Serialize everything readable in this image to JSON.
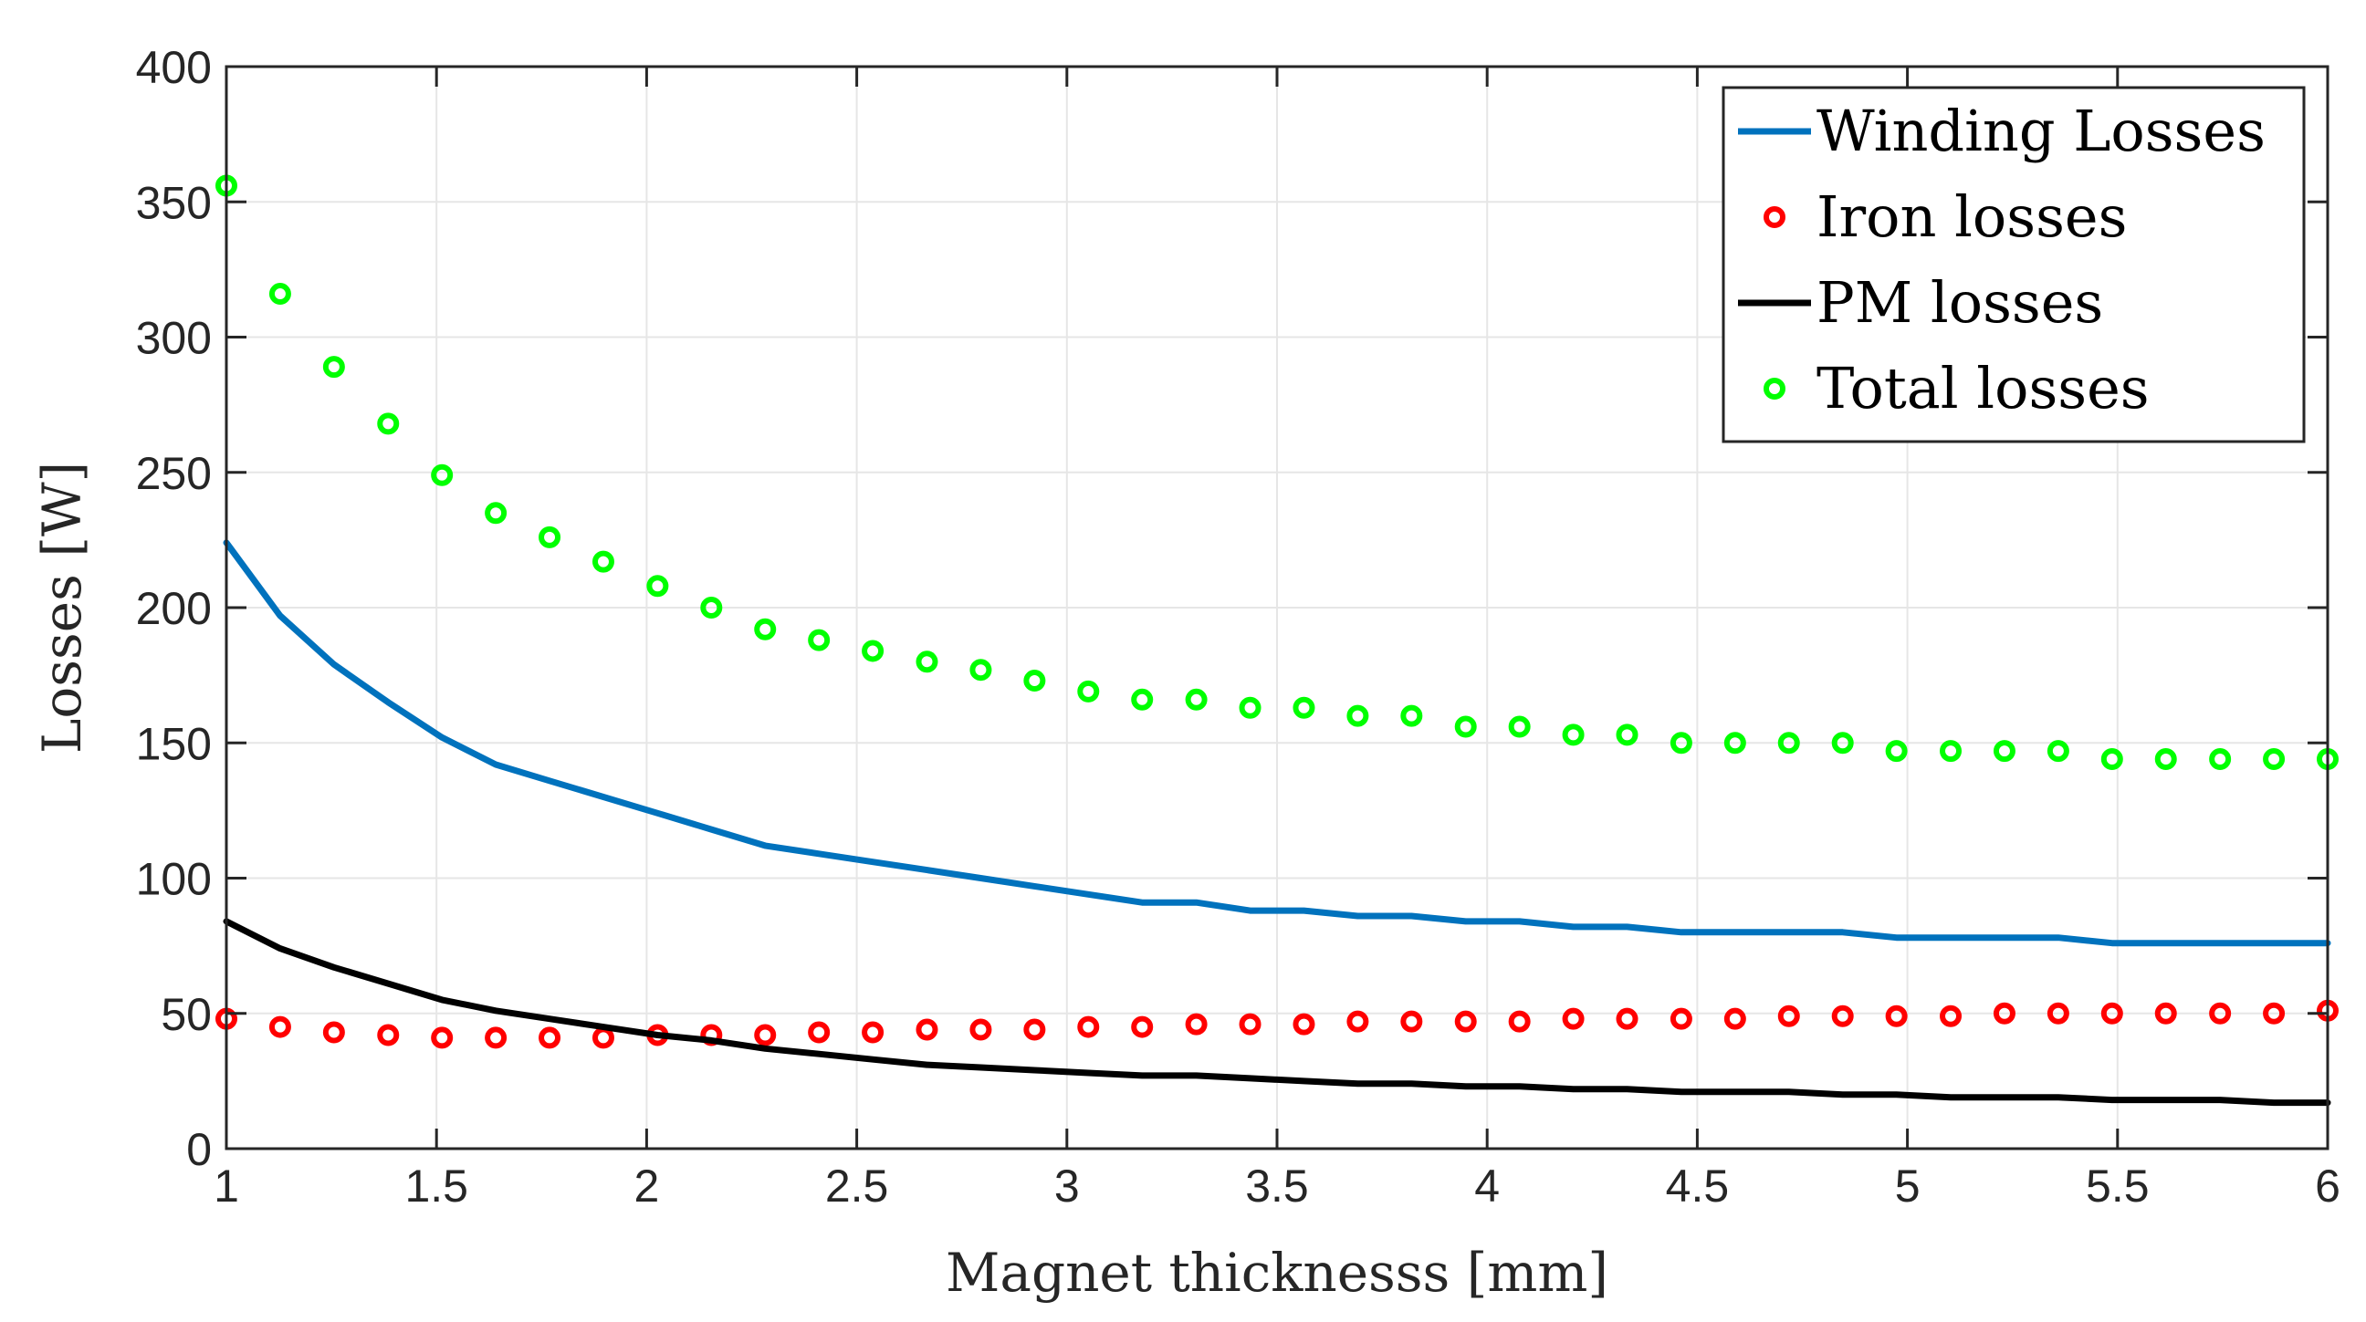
{
  "chart_data": {
    "type": "line",
    "title": "",
    "xlabel": "Magnet thicknesss [mm]",
    "ylabel": "Losses [W]",
    "xlim": [
      1,
      6
    ],
    "ylim": [
      0,
      400
    ],
    "grid": true,
    "legend_position": "top-right",
    "x_ticks": [
      "1",
      "1.5",
      "2",
      "2.5",
      "3",
      "3.5",
      "4",
      "4.5",
      "5",
      "5.5",
      "6"
    ],
    "y_ticks": [
      "0",
      "50",
      "100",
      "150",
      "200",
      "250",
      "300",
      "350",
      "400"
    ],
    "x": [
      1.0,
      1.128,
      1.256,
      1.385,
      1.513,
      1.641,
      1.769,
      1.897,
      2.026,
      2.154,
      2.282,
      2.41,
      2.538,
      2.667,
      2.795,
      2.923,
      3.051,
      3.179,
      3.308,
      3.436,
      3.564,
      3.692,
      3.82,
      3.949,
      4.077,
      4.205,
      4.333,
      4.462,
      4.59,
      4.718,
      4.846,
      4.974,
      5.103,
      5.231,
      5.359,
      5.487,
      5.615,
      5.744,
      5.872,
      6.0
    ],
    "series": [
      {
        "name": "Winding Losses",
        "style": "line",
        "color": "#0072BD",
        "values": [
          224,
          197,
          179,
          165,
          152,
          142,
          136,
          130,
          124,
          118,
          112,
          109,
          106,
          103,
          100,
          97,
          94,
          91,
          91,
          88,
          88,
          86,
          86,
          84,
          84,
          82,
          82,
          80,
          80,
          80,
          80,
          78,
          78,
          78,
          78,
          76,
          76,
          76,
          76,
          76
        ]
      },
      {
        "name": "Iron losses",
        "style": "markers",
        "color": "#FF0000",
        "values": [
          48,
          45,
          43,
          42,
          41,
          41,
          41,
          41,
          42,
          42,
          42,
          43,
          43,
          44,
          44,
          44,
          45,
          45,
          46,
          46,
          46,
          47,
          47,
          47,
          47,
          48,
          48,
          48,
          48,
          49,
          49,
          49,
          49,
          50,
          50,
          50,
          50,
          50,
          50,
          51
        ]
      },
      {
        "name": "PM losses",
        "style": "line",
        "color": "#000000",
        "values": [
          84,
          74,
          67,
          61,
          55,
          51,
          48,
          45,
          42,
          40,
          37,
          35,
          33,
          31,
          30,
          29,
          28,
          27,
          27,
          26,
          25,
          24,
          24,
          23,
          23,
          22,
          22,
          21,
          21,
          21,
          20,
          20,
          19,
          19,
          19,
          18,
          18,
          18,
          17,
          17
        ]
      },
      {
        "name": "Total losses",
        "style": "markers",
        "color": "#00FF00",
        "values": [
          356,
          316,
          289,
          268,
          249,
          235,
          226,
          217,
          208,
          200,
          192,
          188,
          184,
          180,
          177,
          173,
          169,
          166,
          166,
          163,
          163,
          160,
          160,
          156,
          156,
          153,
          153,
          150,
          150,
          150,
          150,
          147,
          147,
          147,
          147,
          144,
          144,
          144,
          144,
          144
        ]
      }
    ]
  }
}
